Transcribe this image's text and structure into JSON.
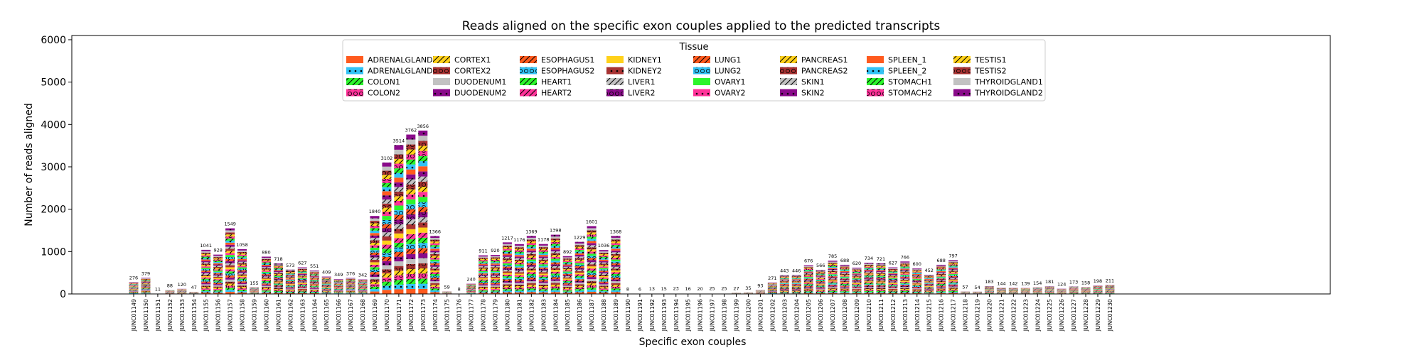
{
  "chart_data": {
    "type": "bar",
    "stacked": true,
    "title": "Reads aligned on the specific exon couples applied to the predicted transcripts",
    "xlabel": "Specific exon couples",
    "ylabel": "Number of reads aligned",
    "ylim": [
      0,
      6100
    ],
    "yticks": [
      0,
      1000,
      2000,
      3000,
      4000,
      5000,
      6000
    ],
    "grid": false,
    "legend": {
      "title": "Tissue",
      "position": "upper center",
      "columns": 8
    },
    "categories": [
      "JUNC01149",
      "JUNC01150",
      "JUNC01151",
      "JUNC01152",
      "JUNC01153",
      "JUNC01154",
      "JUNC01155",
      "JUNC01156",
      "JUNC01157",
      "JUNC01158",
      "JUNC01159",
      "JUNC01160",
      "JUNC01161",
      "JUNC01162",
      "JUNC01163",
      "JUNC01164",
      "JUNC01165",
      "JUNC01166",
      "JUNC01167",
      "JUNC01168",
      "JUNC01169",
      "JUNC01170",
      "JUNC01171",
      "JUNC01172",
      "JUNC01173",
      "JUNC01174",
      "JUNC01175",
      "JUNC01176",
      "JUNC01177",
      "JUNC01178",
      "JUNC01179",
      "JUNC01180",
      "JUNC01181",
      "JUNC01182",
      "JUNC01183",
      "JUNC01184",
      "JUNC01185",
      "JUNC01186",
      "JUNC01187",
      "JUNC01188",
      "JUNC01189",
      "JUNC01190",
      "JUNC01191",
      "JUNC01192",
      "JUNC01193",
      "JUNC01194",
      "JUNC01195",
      "JUNC01196",
      "JUNC01197",
      "JUNC01198",
      "JUNC01199",
      "JUNC01200",
      "JUNC01201",
      "JUNC01202",
      "JUNC01203",
      "JUNC01204",
      "JUNC01205",
      "JUNC01206",
      "JUNC01207",
      "JUNC01208",
      "JUNC01209",
      "JUNC01210",
      "JUNC01211",
      "JUNC01212",
      "JUNC01213",
      "JUNC01214",
      "JUNC01215",
      "JUNC01216",
      "JUNC01217",
      "JUNC01218",
      "JUNC01219",
      "JUNC01220",
      "JUNC01221",
      "JUNC01222",
      "JUNC01223",
      "JUNC01224",
      "JUNC01225",
      "JUNC01226",
      "JUNC01227",
      "JUNC01228",
      "JUNC01229",
      "JUNC01230"
    ],
    "totals": [
      276,
      379,
      11,
      88,
      120,
      47,
      1041,
      928,
      1549,
      1058,
      155,
      880,
      718,
      573,
      627,
      551,
      409,
      349,
      376,
      342,
      1840,
      3102,
      3514,
      3762,
      3856,
      1366,
      59,
      8,
      240,
      911,
      920,
      1217,
      1176,
      1369,
      1178,
      1398,
      892,
      1229,
      1601,
      1036,
      1368,
      8,
      6,
      13,
      15,
      23,
      16,
      20,
      25,
      25,
      27,
      35,
      93,
      271,
      443,
      446,
      676,
      566,
      785,
      688,
      620,
      734,
      721,
      627,
      766,
      600,
      452,
      688,
      797,
      57,
      54,
      183,
      144,
      142,
      139,
      154,
      181,
      124,
      173,
      158,
      198,
      211
    ],
    "series": [
      {
        "name": "ADRENALGLAND1",
        "color": "#ff5a1e",
        "hatch": "none"
      },
      {
        "name": "ADRENALGLAND2",
        "color": "#33c3f5",
        "hatch": "dots"
      },
      {
        "name": "COLON1",
        "color": "#2cf52c",
        "hatch": "slash"
      },
      {
        "name": "COLON2",
        "color": "#ff3399",
        "hatch": "circles"
      },
      {
        "name": "CORTEX1",
        "color": "#ffd11a",
        "hatch": "slash"
      },
      {
        "name": "CORTEX2",
        "color": "#a83232",
        "hatch": "circles"
      },
      {
        "name": "DUODENUM1",
        "color": "#c2c2c2",
        "hatch": "none"
      },
      {
        "name": "DUODENUM2",
        "color": "#8a0a8a",
        "hatch": "dots"
      },
      {
        "name": "ESOPHAGUS1",
        "color": "#ff5a1e",
        "hatch": "slash"
      },
      {
        "name": "ESOPHAGUS2",
        "color": "#33c3f5",
        "hatch": "circles"
      },
      {
        "name": "HEART1",
        "color": "#2cf52c",
        "hatch": "slash"
      },
      {
        "name": "HEART2",
        "color": "#ff3399",
        "hatch": "slash"
      },
      {
        "name": "KIDNEY1",
        "color": "#ffd11a",
        "hatch": "none"
      },
      {
        "name": "KIDNEY2",
        "color": "#a83232",
        "hatch": "dots"
      },
      {
        "name": "LIVER1",
        "color": "#c2c2c2",
        "hatch": "slash"
      },
      {
        "name": "LIVER2",
        "color": "#8a0a8a",
        "hatch": "circles"
      },
      {
        "name": "LUNG1",
        "color": "#ff5a1e",
        "hatch": "slash"
      },
      {
        "name": "LUNG2",
        "color": "#33c3f5",
        "hatch": "circles"
      },
      {
        "name": "OVARY1",
        "color": "#2cf52c",
        "hatch": "none"
      },
      {
        "name": "OVARY2",
        "color": "#ff3399",
        "hatch": "dots"
      },
      {
        "name": "PANCREAS1",
        "color": "#ffd11a",
        "hatch": "slash"
      },
      {
        "name": "PANCREAS2",
        "color": "#a83232",
        "hatch": "circles"
      },
      {
        "name": "SKIN1",
        "color": "#c2c2c2",
        "hatch": "slash"
      },
      {
        "name": "SKIN2",
        "color": "#8a0a8a",
        "hatch": "dots"
      },
      {
        "name": "SPLEEN_1",
        "color": "#ff5a1e",
        "hatch": "none"
      },
      {
        "name": "SPLEEN_2",
        "color": "#33c3f5",
        "hatch": "dots"
      },
      {
        "name": "STOMACH1",
        "color": "#2cf52c",
        "hatch": "slash"
      },
      {
        "name": "STOMACH2",
        "color": "#ff3399",
        "hatch": "circles"
      },
      {
        "name": "TESTIS1",
        "color": "#ffd11a",
        "hatch": "slash"
      },
      {
        "name": "TESTIS2",
        "color": "#a83232",
        "hatch": "circles"
      },
      {
        "name": "THYROIDGLAND1",
        "color": "#c2c2c2",
        "hatch": "none"
      },
      {
        "name": "THYROIDGLAND2",
        "color": "#8a0a8a",
        "hatch": "dots"
      }
    ]
  }
}
